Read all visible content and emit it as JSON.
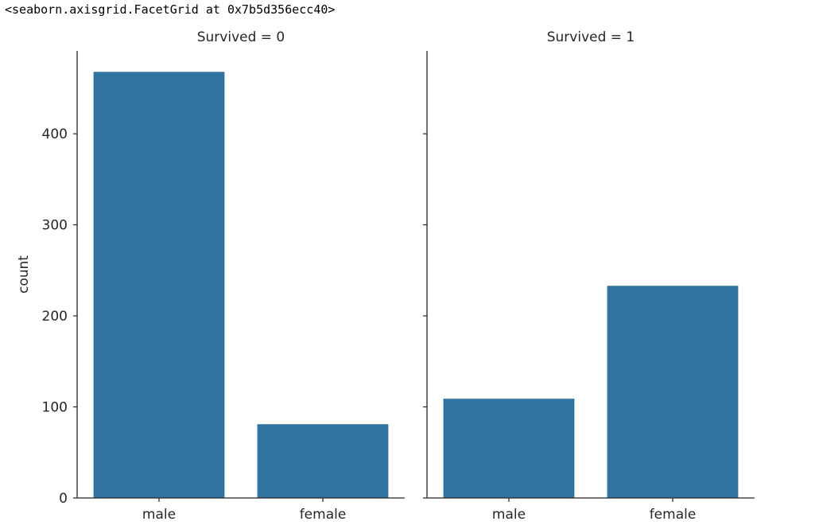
{
  "output_repr": "<seaborn.axisgrid.FacetGrid at 0x7b5d356ecc40>",
  "chart_data": [
    {
      "type": "bar",
      "title": "Survived = 0",
      "xlabel": "",
      "ylabel": "count",
      "categories": [
        "male",
        "female"
      ],
      "values": [
        468,
        81
      ],
      "ylim": [
        0,
        491
      ],
      "yticks": [
        0,
        100,
        200,
        300,
        400
      ],
      "grid": false,
      "color": "#3274a1"
    },
    {
      "type": "bar",
      "title": "Survived = 1",
      "xlabel": "",
      "ylabel": "",
      "categories": [
        "male",
        "female"
      ],
      "values": [
        109,
        233
      ],
      "ylim": [
        0,
        491
      ],
      "yticks": [
        0,
        100,
        200,
        300,
        400
      ],
      "grid": false,
      "color": "#3274a1"
    }
  ]
}
